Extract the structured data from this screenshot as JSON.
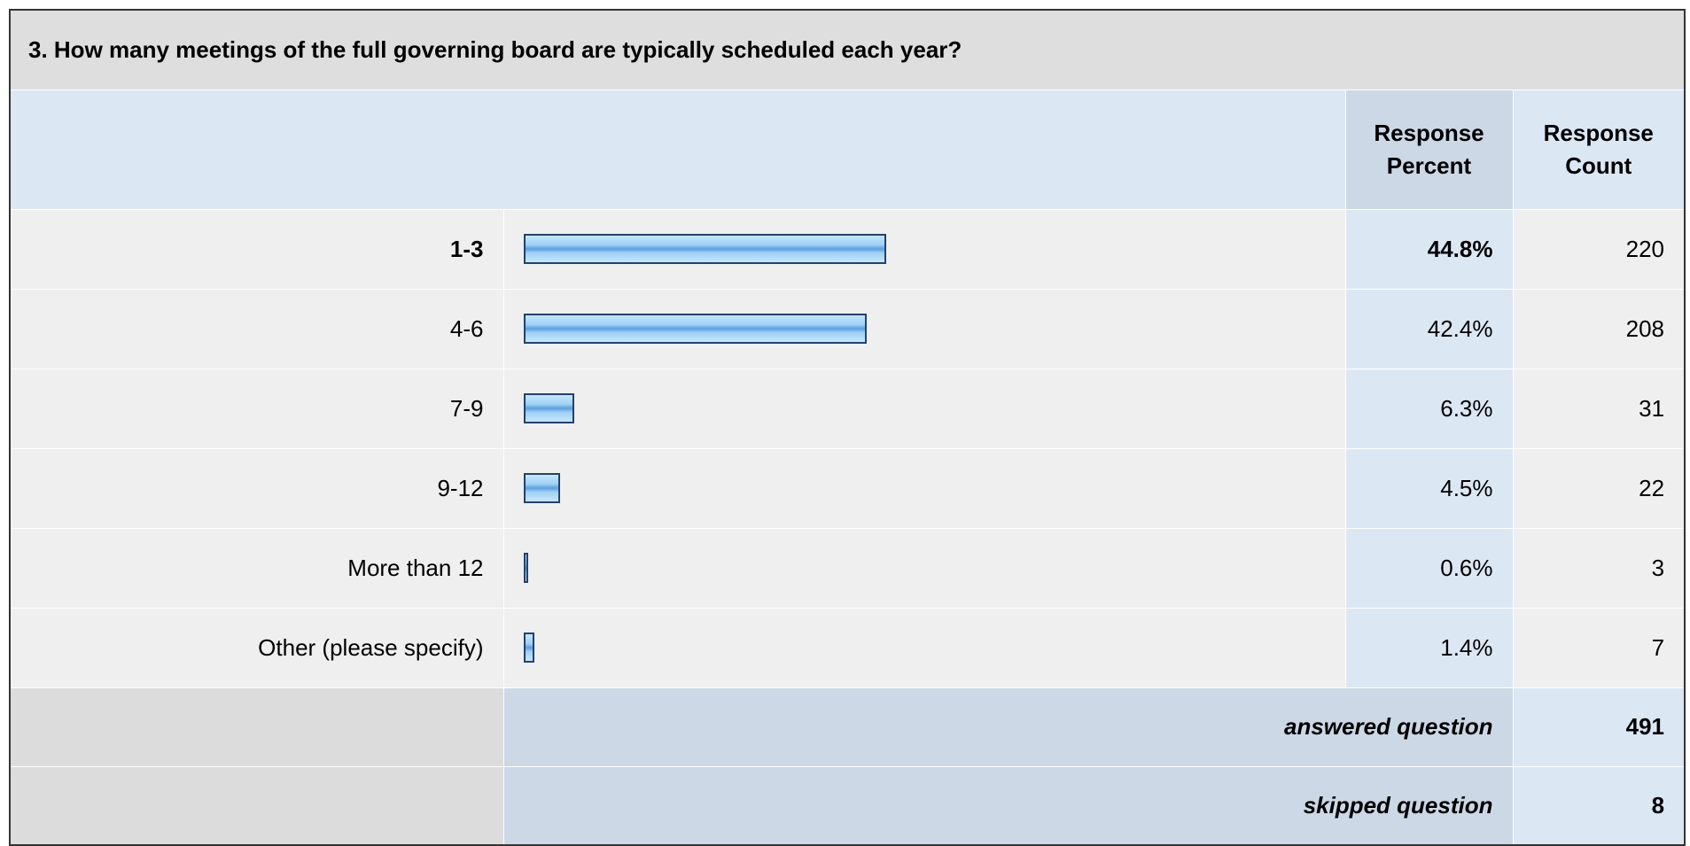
{
  "question": "3. How many meetings of the full governing board are typically scheduled each year?",
  "headers": {
    "percent": "Response Percent",
    "count": "Response Count"
  },
  "rows": [
    {
      "label": "1-3",
      "percent": 44.8,
      "percent_label": "44.8%",
      "count": 220
    },
    {
      "label": "4-6",
      "percent": 42.4,
      "percent_label": "42.4%",
      "count": 208
    },
    {
      "label": "7-9",
      "percent": 6.3,
      "percent_label": "6.3%",
      "count": 31
    },
    {
      "label": "9-12",
      "percent": 4.5,
      "percent_label": "4.5%",
      "count": 22
    },
    {
      "label": "More than 12",
      "percent": 0.6,
      "percent_label": "0.6%",
      "count": 3
    },
    {
      "label": "Other (please specify)",
      "percent": 1.4,
      "percent_label": "1.4%",
      "count": 7
    }
  ],
  "answered": {
    "label": "answered question",
    "count": 491
  },
  "skipped": {
    "label": "skipped question",
    "count": 8
  }
}
